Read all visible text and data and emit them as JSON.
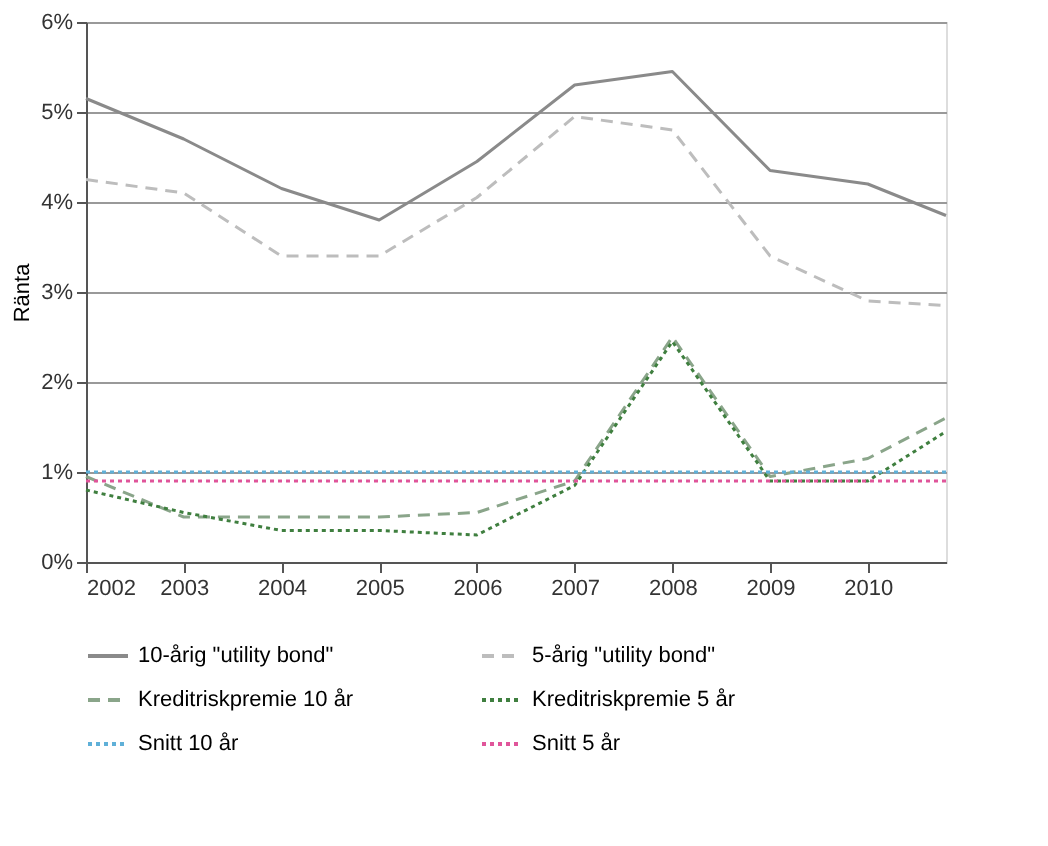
{
  "chart_data": {
    "type": "line",
    "ylabel": "Ränta",
    "x": [
      2002,
      2003,
      2004,
      2005,
      2006,
      2007,
      2008,
      2009,
      2010,
      2010.8
    ],
    "xlim": [
      2002,
      2010.8
    ],
    "xticks": [
      2002,
      2003,
      2004,
      2005,
      2006,
      2007,
      2008,
      2009,
      2010
    ],
    "ylim": [
      0,
      6
    ],
    "yticks": [
      {
        "value": 0,
        "label": "0%"
      },
      {
        "value": 1,
        "label": "1%"
      },
      {
        "value": 2,
        "label": "2%"
      },
      {
        "value": 3,
        "label": "3%"
      },
      {
        "value": 4,
        "label": "4%"
      },
      {
        "value": 5,
        "label": "5%"
      },
      {
        "value": 6,
        "label": "6%"
      }
    ],
    "grid": "y",
    "legend": "bottom",
    "series": [
      {
        "name": "10-årig \"utility bond\"",
        "color": "#8a8a8a",
        "line_style": "solid",
        "values": [
          5.15,
          4.7,
          4.15,
          3.8,
          4.45,
          5.3,
          5.45,
          4.35,
          4.2,
          3.85
        ]
      },
      {
        "name": "5-årig \"utility bond\"",
        "color": "#bdbdbd",
        "line_style": "dashed",
        "values": [
          4.25,
          4.1,
          3.4,
          3.4,
          4.05,
          4.95,
          4.8,
          3.4,
          2.9,
          2.85
        ]
      },
      {
        "name": "Kreditriskpremie 10 år",
        "color": "#8aa58a",
        "line_style": "dashed",
        "values": [
          0.95,
          0.5,
          0.5,
          0.5,
          0.55,
          0.9,
          2.5,
          0.95,
          1.15,
          1.6
        ]
      },
      {
        "name": "Kreditriskpremie 5 år",
        "color": "#3f7f3f",
        "line_style": "dotted",
        "values": [
          0.8,
          0.55,
          0.35,
          0.35,
          0.3,
          0.85,
          2.45,
          0.9,
          0.9,
          1.45
        ]
      },
      {
        "name": "Snitt 10 år",
        "color": "#5fb0d8",
        "line_style": "dotted",
        "values": [
          1.0,
          1.0,
          1.0,
          1.0,
          1.0,
          1.0,
          1.0,
          1.0,
          1.0,
          1.0
        ]
      },
      {
        "name": "Snitt  5 år",
        "color": "#e0559a",
        "line_style": "dotted",
        "values": [
          0.9,
          0.9,
          0.9,
          0.9,
          0.9,
          0.9,
          0.9,
          0.9,
          0.9,
          0.9
        ]
      }
    ]
  }
}
